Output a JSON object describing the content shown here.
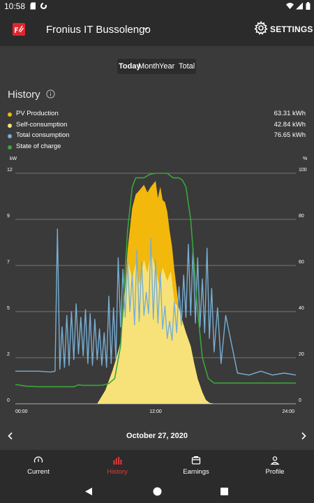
{
  "status_bar": {
    "time": "10:58",
    "icons": [
      "sd-card-icon",
      "sync-icon",
      "wifi-icon",
      "signal-icon",
      "battery-icon"
    ]
  },
  "app_bar": {
    "site_name": "Fronius IT Bussolengo",
    "settings_label": "SETTINGS"
  },
  "period_selector": {
    "options": [
      "Today",
      "Month",
      "Year",
      "Total"
    ],
    "selected": "Today"
  },
  "history": {
    "title": "History",
    "legend": [
      {
        "name": "PV Production",
        "value": "63.31 kWh",
        "color": "#f2b90c"
      },
      {
        "name": "Self-consumption",
        "value": "42.84 kWh",
        "color": "#f7e27a"
      },
      {
        "name": "Total consumption",
        "value": "76.65 kWh",
        "color": "#78aed3"
      },
      {
        "name": "State of charge",
        "value": "",
        "color": "#3ba53b"
      }
    ]
  },
  "chart_data": {
    "type": "area",
    "x_unit": "hours",
    "xlim": [
      0,
      24
    ],
    "x_ticks": [
      "00:00",
      "12:00",
      "24:00"
    ],
    "y_left": {
      "unit": "kW",
      "ticks": [
        "0",
        "2",
        "5",
        "7",
        "9",
        "12"
      ],
      "range": [
        0,
        12
      ]
    },
    "y_right": {
      "unit": "%",
      "ticks": [
        "0",
        "20",
        "40",
        "60",
        "80",
        "100"
      ],
      "range": [
        0,
        100
      ]
    },
    "grid": true,
    "series": [
      {
        "name": "PV Production",
        "color": "#f2b90c",
        "x": [
          0,
          7.0,
          7.3,
          7.7,
          8.0,
          8.3,
          8.6,
          9.0,
          9.3,
          9.6,
          10.0,
          10.3,
          10.6,
          11.0,
          11.3,
          11.6,
          12.0,
          12.2,
          12.4,
          12.6,
          12.8,
          13.0,
          13.2,
          13.4,
          13.6,
          14.0,
          14.3,
          14.6,
          15.0,
          15.3,
          15.6,
          16.0,
          16.3,
          16.6,
          17.0,
          17.3,
          24
        ],
        "y": [
          0,
          0,
          0.3,
          0.7,
          1.2,
          1.7,
          2.3,
          3.2,
          5.2,
          8.0,
          10.2,
          10.9,
          11.1,
          11.4,
          11.0,
          11.3,
          11.6,
          10.7,
          11.3,
          10.6,
          10.5,
          10.0,
          9.0,
          8.2,
          7.0,
          5.0,
          4.3,
          3.7,
          3.0,
          2.1,
          1.3,
          0.6,
          0.2,
          0.05,
          0,
          0,
          0
        ]
      },
      {
        "name": "Self-consumption",
        "color": "#f7e27a",
        "x": [
          0,
          7.0,
          7.3,
          7.7,
          8.0,
          8.3,
          8.6,
          9.0,
          9.3,
          9.6,
          10.0,
          10.3,
          10.6,
          11.0,
          11.3,
          11.6,
          12.0,
          12.3,
          12.6,
          13.0,
          13.3,
          13.6,
          14.0,
          14.3,
          14.6,
          15.0,
          15.3,
          15.6,
          16.0,
          16.3,
          16.6,
          17.0,
          17.3,
          24
        ],
        "y": [
          0,
          0,
          0.3,
          0.7,
          1.2,
          1.7,
          2.3,
          3.2,
          5.0,
          7.5,
          6.5,
          7.3,
          6.2,
          7.5,
          6.8,
          7.9,
          7.0,
          6.2,
          7.1,
          6.4,
          6.9,
          5.3,
          5.0,
          4.3,
          3.7,
          3.0,
          2.1,
          1.3,
          0.6,
          0.2,
          0.05,
          0,
          0,
          0
        ]
      },
      {
        "name": "Total consumption",
        "color": "#78aed3",
        "x": [
          0,
          2.0,
          3.0,
          3.4,
          3.6,
          3.8,
          4.0,
          4.2,
          4.4,
          4.6,
          4.8,
          5.0,
          5.2,
          5.4,
          5.6,
          5.8,
          6.0,
          6.2,
          6.4,
          6.6,
          6.8,
          7.0,
          7.2,
          7.4,
          7.6,
          7.8,
          8.0,
          8.2,
          8.4,
          8.6,
          8.8,
          9.0,
          9.2,
          9.4,
          9.6,
          9.8,
          10.0,
          10.2,
          10.4,
          10.6,
          10.8,
          11.0,
          11.2,
          11.4,
          11.6,
          11.8,
          12.0,
          12.2,
          12.4,
          12.6,
          12.8,
          13.0,
          13.2,
          13.4,
          13.6,
          13.8,
          14.0,
          14.2,
          14.4,
          14.6,
          14.8,
          15.0,
          15.2,
          15.4,
          15.6,
          15.8,
          16.0,
          16.2,
          16.4,
          16.6,
          16.8,
          17.0,
          17.3,
          17.6,
          18.0,
          19.0,
          20.0,
          21.0,
          22.0,
          23.0,
          24.0
        ],
        "y": [
          1.7,
          1.7,
          1.65,
          1.7,
          9.1,
          1.8,
          4.0,
          1.9,
          4.6,
          2.0,
          4.8,
          2.3,
          5.2,
          2.6,
          4.5,
          2.5,
          4.9,
          2.1,
          4.7,
          2.0,
          4.4,
          2.3,
          3.9,
          2.0,
          3.7,
          1.9,
          5.6,
          2.1,
          5.0,
          2.3,
          7.6,
          4.0,
          7.0,
          4.5,
          7.4,
          4.8,
          6.7,
          4.1,
          8.0,
          4.3,
          7.4,
          4.6,
          5.8,
          4.7,
          8.6,
          4.4,
          7.5,
          4.2,
          6.8,
          3.9,
          5.1,
          3.4,
          4.3,
          3.3,
          5.3,
          3.7,
          6.1,
          4.1,
          6.7,
          4.5,
          8.3,
          4.6,
          8.1,
          4.2,
          7.6,
          4.0,
          6.5,
          3.7,
          8.1,
          3.4,
          6.0,
          2.7,
          5.0,
          2.1,
          4.6,
          1.6,
          1.5,
          1.7,
          1.5,
          1.6,
          1.5
        ]
      },
      {
        "name": "State of charge",
        "color": "#3ba53b",
        "x": [
          0,
          1.0,
          2.0,
          3.0,
          4.0,
          5.0,
          5.4,
          5.8,
          6.5,
          7.0,
          7.5,
          8.0,
          8.5,
          9.0,
          9.3,
          9.6,
          10.0,
          10.3,
          10.6,
          11.0,
          11.5,
          12.0,
          12.5,
          13.0,
          13.5,
          14.0,
          14.3,
          14.6,
          15.0,
          15.3,
          15.6,
          16.0,
          16.5,
          17.0,
          18.0,
          20.0,
          22.0,
          24.0
        ],
        "y": [
          8.4,
          7.6,
          7.4,
          7.4,
          7.4,
          7.4,
          8.2,
          8.0,
          8.0,
          8.0,
          8.1,
          8.8,
          11.0,
          25.0,
          50.0,
          75.0,
          94.0,
          98.0,
          98.0,
          98.0,
          99.5,
          100,
          100,
          100,
          98.0,
          98.0,
          97.0,
          94.0,
          80.0,
          60.0,
          40.0,
          20.0,
          11.0,
          9.0,
          9.0,
          9.0,
          9.0,
          9.0
        ]
      }
    ]
  },
  "date_nav": {
    "date": "October 27, 2020"
  },
  "bottom_nav": {
    "items": [
      {
        "label": "Current",
        "icon": "gauge-icon"
      },
      {
        "label": "History",
        "icon": "bar-chart-icon"
      },
      {
        "label": "Earnings",
        "icon": "wallet-icon"
      },
      {
        "label": "Profile",
        "icon": "person-icon"
      }
    ],
    "active_index": 1,
    "active_color": "#e5393a"
  }
}
